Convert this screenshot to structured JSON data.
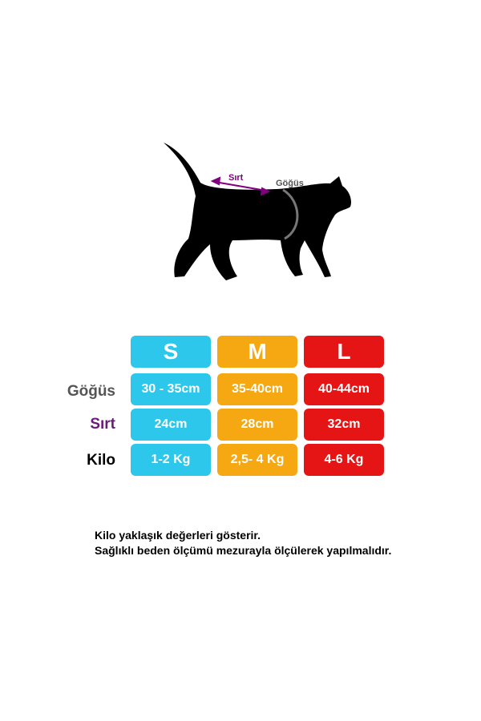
{
  "diagram": {
    "back_label": "Sırt",
    "chest_label": "Göğüs",
    "back_color": "#800080",
    "chest_color": "#555555"
  },
  "table": {
    "sizes": [
      "S",
      "M",
      "L"
    ],
    "size_colors": [
      "#2cc7ea",
      "#f6a812",
      "#e51515"
    ],
    "rows": [
      {
        "label": "Göğüs",
        "label_color": "#555555",
        "values": [
          "30 - 35cm",
          "35-40cm",
          "40-44cm"
        ]
      },
      {
        "label": "Sırt",
        "label_color": "#6a1a7a",
        "values": [
          "24cm",
          "28cm",
          "32cm"
        ]
      },
      {
        "label": "Kilo",
        "label_color": "#000000",
        "values": [
          "1-2 Kg",
          "2,5- 4 Kg",
          "4-6 Kg"
        ]
      }
    ]
  },
  "notes": [
    "Kilo yaklaşık değerleri gösterir.",
    "Sağlıklı beden ölçümü mezurayla ölçülerek yapılmalıdır."
  ]
}
